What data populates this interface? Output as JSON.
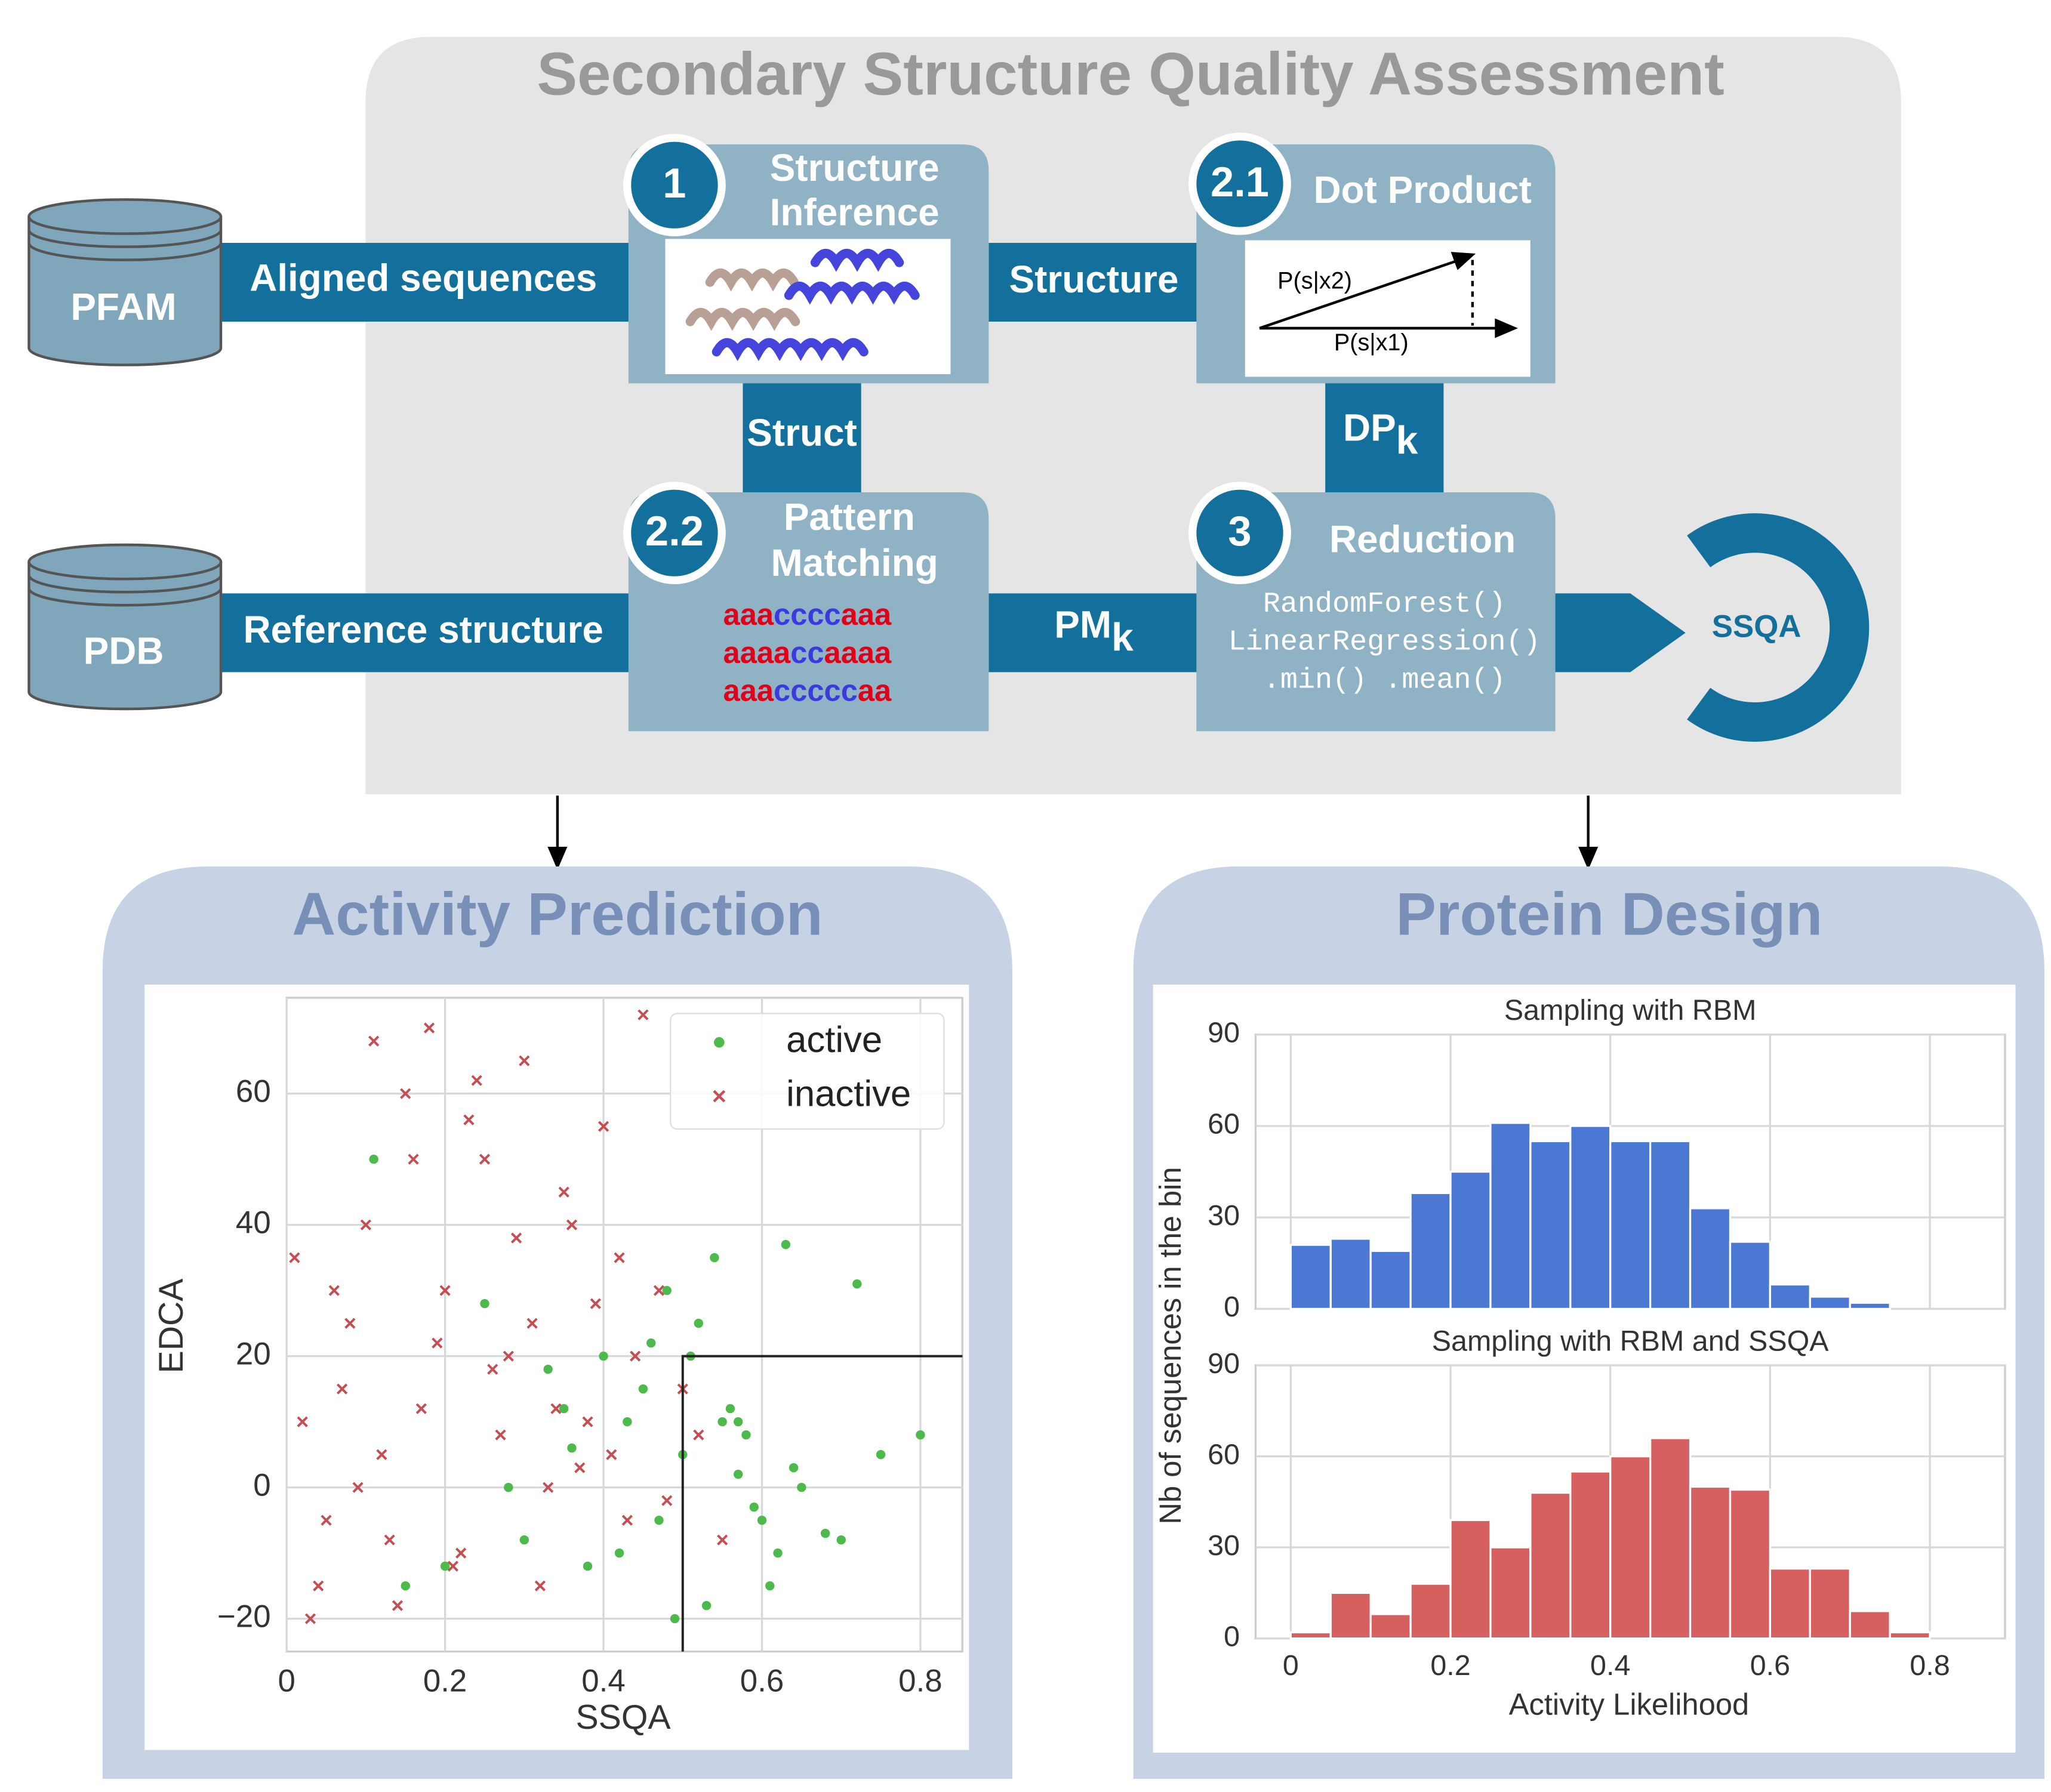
{
  "header": {
    "title": "Secondary Structure Quality Assessment"
  },
  "databases": [
    {
      "label": "PFAM"
    },
    {
      "label": "PDB"
    }
  ],
  "connectors": {
    "aligned": "Aligned sequences",
    "reference": "Reference structure",
    "structure": "Structure",
    "struct": "Struct",
    "dp": {
      "label": "DP",
      "subscript": "k"
    },
    "pm": {
      "label": "PM",
      "subscript": "k"
    }
  },
  "steps": [
    {
      "number": "1",
      "lines": [
        "Structure",
        "Inference"
      ]
    },
    {
      "number": "2.1",
      "lines": [
        "Dot Product"
      ],
      "vectors": [
        "P(s|x2)",
        "P(s|x1)"
      ]
    },
    {
      "number": "2.2",
      "lines": [
        "Pattern",
        "Matching"
      ],
      "patterns": [
        [
          "aaa",
          "cccc",
          "aaa"
        ],
        [
          "aaaa",
          "cc",
          "aaaa"
        ],
        [
          "aaa",
          "ccccc",
          "aa"
        ]
      ],
      "pattern_colors": [
        "#e00018",
        "#3a3ae0",
        "#e00018"
      ]
    },
    {
      "number": "3",
      "lines": [
        "Reduction"
      ],
      "code": [
        "RandomForest()",
        "LinearRegression()",
        ".min() .mean()"
      ]
    }
  ],
  "output": {
    "label": "SSQA"
  },
  "activity_prediction": {
    "title": "Activity Prediction",
    "chart_data": {
      "type": "scatter",
      "xlabel": "SSQA",
      "ylabel": "EDCA",
      "xlim": [
        0,
        0.853
      ],
      "ylim": [
        -25,
        74.6
      ],
      "xticks": [
        0,
        0.2,
        0.4,
        0.6,
        0.8
      ],
      "yticks": [
        {
          "value": -20,
          "label": "−20"
        },
        0,
        20,
        40,
        60
      ],
      "grid": true,
      "legend": "upper right",
      "threshold": {
        "x": 0.5,
        "y": 20
      },
      "series": [
        {
          "name": "active",
          "color": "#4cbb4c",
          "marker": "dot",
          "x": [
            0.45,
            0.5,
            0.55,
            0.6,
            0.52,
            0.58,
            0.62,
            0.48,
            0.4,
            0.35,
            0.3,
            0.25,
            0.2,
            0.15,
            0.65,
            0.7,
            0.75,
            0.8,
            0.57,
            0.53,
            0.47,
            0.43,
            0.38,
            0.33,
            0.28,
            0.56,
            0.59,
            0.61,
            0.54,
            0.51,
            0.64,
            0.68,
            0.72,
            0.11,
            0.42,
            0.49,
            0.57,
            0.63,
            0.46,
            0.36
          ],
          "values": [
            15,
            5,
            10,
            -5,
            25,
            8,
            -10,
            30,
            20,
            12,
            -8,
            28,
            -12,
            -15,
            0,
            -8,
            5,
            8,
            2,
            -18,
            -5,
            10,
            -12,
            18,
            0,
            12,
            -3,
            -15,
            35,
            20,
            3,
            -7,
            31,
            50,
            -10,
            -20,
            10,
            37,
            22,
            6
          ]
        },
        {
          "name": "inactive",
          "color": "#c44e52",
          "marker": "x",
          "x": [
            0.02,
            0.05,
            0.08,
            0.03,
            0.1,
            0.12,
            0.15,
            0.07,
            0.2,
            0.18,
            0.25,
            0.22,
            0.3,
            0.28,
            0.35,
            0.33,
            0.4,
            0.38,
            0.45,
            0.42,
            0.5,
            0.48,
            0.04,
            0.06,
            0.13,
            0.17,
            0.24,
            0.27,
            0.31,
            0.36,
            0.41,
            0.44,
            0.01,
            0.09,
            0.16,
            0.21,
            0.26,
            0.32,
            0.37,
            0.43,
            0.47,
            0.52,
            0.55,
            0.11,
            0.19,
            0.29,
            0.34,
            0.39,
            0.23,
            0.14
          ],
          "values": [
            10,
            -5,
            25,
            -20,
            40,
            5,
            60,
            15,
            30,
            70,
            50,
            -10,
            65,
            20,
            45,
            0,
            55,
            10,
            72,
            35,
            15,
            -2,
            -15,
            30,
            -8,
            12,
            62,
            8,
            25,
            40,
            5,
            20,
            35,
            0,
            50,
            -12,
            18,
            -15,
            3,
            -5,
            30,
            8,
            -8,
            68,
            22,
            38,
            12,
            28,
            56,
            -18
          ]
        }
      ]
    }
  },
  "protein_design": {
    "title": "Protein Design",
    "ylabel": "Nb of sequences in the bin",
    "xlabel": "Activity Likelihood",
    "chart_data": [
      {
        "type": "histogram",
        "title": "Sampling with RBM",
        "color": "#4a78d2",
        "bins": [
          0,
          0.05,
          0.1,
          0.15,
          0.2,
          0.25,
          0.3,
          0.35,
          0.4,
          0.45,
          0.5,
          0.55,
          0.6,
          0.65,
          0.7,
          0.75
        ],
        "values": [
          21,
          23,
          19,
          38,
          45,
          61,
          55,
          60,
          55,
          55,
          33,
          22,
          8,
          4,
          2
        ],
        "xlim": [
          -0.044,
          0.894
        ],
        "ylim": [
          0,
          90
        ],
        "xticks": [
          0,
          0.2,
          0.4,
          0.6,
          0.8
        ],
        "yticks": [
          0,
          30,
          60,
          90
        ],
        "grid": true,
        "show_xticks": false
      },
      {
        "type": "histogram",
        "title": "Sampling with RBM and SSQA",
        "color": "#d65f5f",
        "bins": [
          0,
          0.05,
          0.1,
          0.15,
          0.2,
          0.25,
          0.3,
          0.35,
          0.4,
          0.45,
          0.5,
          0.55,
          0.6,
          0.65,
          0.7,
          0.75,
          0.8
        ],
        "values": [
          2,
          15,
          8,
          18,
          39,
          30,
          48,
          55,
          60,
          66,
          50,
          49,
          23,
          23,
          9,
          2
        ],
        "xlim": [
          -0.044,
          0.894
        ],
        "ylim": [
          0,
          90
        ],
        "xticks": [
          0,
          0.2,
          0.4,
          0.6,
          0.8
        ],
        "yticks": [
          0,
          30,
          60,
          90
        ],
        "grid": true,
        "show_xticks": true
      }
    ]
  }
}
